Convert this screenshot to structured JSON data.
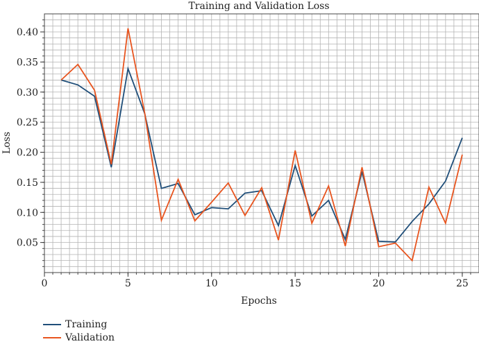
{
  "chart_data": {
    "type": "line",
    "title": "Training and Validation Loss",
    "xlabel": "Epochs",
    "ylabel": "Loss",
    "xlim": [
      0,
      26
    ],
    "ylim": [
      0,
      0.43
    ],
    "xticks": [
      0,
      5,
      10,
      15,
      20,
      25
    ],
    "yticks": [
      0.05,
      0.1,
      0.15,
      0.2,
      0.25,
      0.3,
      0.35,
      0.4
    ],
    "grid": true,
    "legend_position": "bottom-left",
    "x": [
      1,
      2,
      3,
      4,
      5,
      6,
      7,
      8,
      9,
      10,
      11,
      12,
      13,
      14,
      15,
      16,
      17,
      18,
      19,
      20,
      21,
      22,
      23,
      24,
      25
    ],
    "series": [
      {
        "name": "Training",
        "color": "#1f4e79",
        "values": [
          0.32,
          0.312,
          0.293,
          0.175,
          0.339,
          0.264,
          0.14,
          0.148,
          0.096,
          0.108,
          0.106,
          0.132,
          0.136,
          0.078,
          0.178,
          0.094,
          0.12,
          0.055,
          0.168,
          0.052,
          0.051,
          0.085,
          0.114,
          0.152,
          0.224
        ]
      },
      {
        "name": "Validation",
        "color": "#e8541e",
        "values": [
          0.32,
          0.346,
          0.303,
          0.18,
          0.406,
          0.265,
          0.087,
          0.155,
          0.086,
          0.117,
          0.149,
          0.095,
          0.141,
          0.054,
          0.203,
          0.082,
          0.144,
          0.044,
          0.175,
          0.043,
          0.049,
          0.02,
          0.142,
          0.082,
          0.196
        ]
      }
    ]
  }
}
